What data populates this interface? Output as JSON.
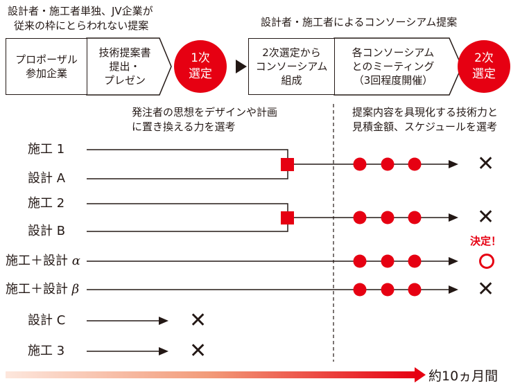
{
  "top_notes": {
    "left": [
      "設計者・施工者単独、JV企業が",
      "従来の枠にとらわれない提案"
    ],
    "right": "設計者・施工者によるコンソーシアム提案"
  },
  "flow": {
    "box1": "プロポーザル\n参加企業",
    "box2": "技術提案書\n提出・\nプレゼン",
    "circle1": "1次\n選定",
    "box3": "2次選定から\nコンソーシアム\n組成",
    "box4": "各コンソーシアム\nとのミーティング\n（3回程度開催）",
    "circle2": "2次\n選定"
  },
  "criteria": {
    "first": [
      "発注者の思想をデザインや計画",
      "に置き換える力を選考"
    ],
    "second": [
      "提案内容を具現化する技術力と",
      "見積金額、スケジュールを選考"
    ]
  },
  "rows": {
    "sekou1": "施工 1",
    "sekkeiA": "設計 A",
    "sekou2": "施工 2",
    "sekkeiB": "設計 B",
    "alpha_prefix": "施工＋設計 ",
    "alpha_greek": "α",
    "beta_prefix": "施工＋設計 ",
    "beta_greek": "β",
    "sekkeiC": "設計 C",
    "sekou3": "施工 3"
  },
  "marks": {
    "reject": "✕",
    "decision_label": "決定！"
  },
  "period": "約10ヵ月間",
  "colors": {
    "accent": "#e60012",
    "ink": "#231815"
  }
}
